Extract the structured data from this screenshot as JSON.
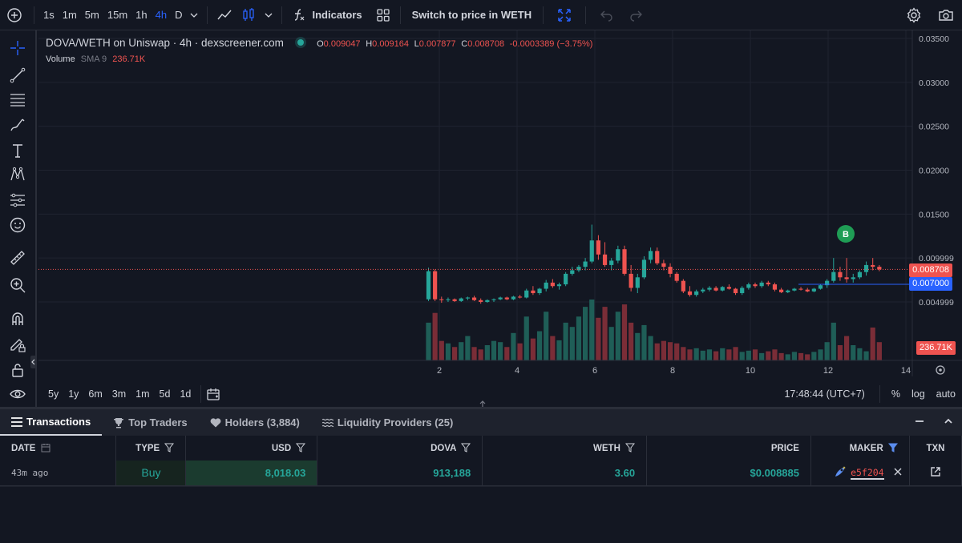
{
  "toolbar": {
    "timeframes": [
      "1s",
      "1m",
      "5m",
      "15m",
      "1h",
      "4h",
      "D"
    ],
    "active_timeframe": "4h",
    "indicators_label": "Indicators",
    "switch_label": "Switch to price in WETH"
  },
  "legend": {
    "title": "DOVA/WETH on Uniswap · 4h · dexscreener.com",
    "o_key": "O",
    "o": "0.009047",
    "h_key": "H",
    "h": "0.009164",
    "l_key": "L",
    "l": "0.007877",
    "c_key": "C",
    "c": "0.008708",
    "change": "-0.0003389 (−3.75%)",
    "volume_label": "Volume",
    "sma_label": "SMA 9",
    "volume_value": "236.71K"
  },
  "chart_data": {
    "type": "candlestick",
    "y_ticks": [
      "0.03500",
      "0.03000",
      "0.02500",
      "0.02000",
      "0.01500",
      "0.009999",
      "0.004999"
    ],
    "x_ticks": [
      "2",
      "4",
      "6",
      "8",
      "10",
      "12",
      "14"
    ],
    "current_price": "0.008708",
    "line_price": "0.007000",
    "volume_tag": "236.71K",
    "marker_label": "B",
    "colors": {
      "up": "#26a69a",
      "down": "#ef5350",
      "grid": "#1f2330",
      "line": "#2962ff"
    }
  },
  "range_bar": {
    "ranges": [
      "5y",
      "1y",
      "6m",
      "3m",
      "1m",
      "5d",
      "1d"
    ],
    "time": "17:48:44 (UTC+7)",
    "percent": "%",
    "log": "log",
    "auto": "auto"
  },
  "tabs": [
    {
      "label": "Transactions",
      "active": true
    },
    {
      "label": "Top Traders",
      "active": false
    },
    {
      "label": "Holders (3,884)",
      "active": false
    },
    {
      "label": "Liquidity Providers (25)",
      "active": false
    }
  ],
  "table": {
    "headers": {
      "date": "DATE",
      "type": "TYPE",
      "usd": "USD",
      "dova": "DOVA",
      "weth": "WETH",
      "price": "PRICE",
      "maker": "MAKER",
      "txn": "TXN"
    },
    "rows": [
      {
        "date": "43m ago",
        "type": "Buy",
        "usd": "8,018.03",
        "dova": "913,188",
        "weth": "3.60",
        "price": "$0.008885",
        "maker": "e5f204"
      }
    ]
  }
}
